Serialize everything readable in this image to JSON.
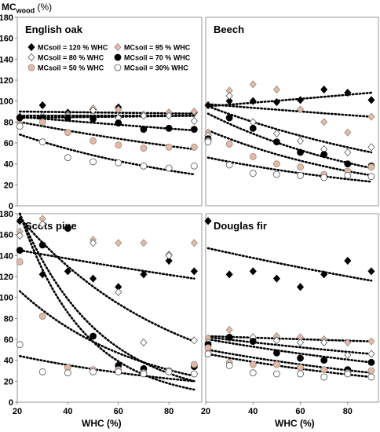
{
  "figure": {
    "ylabel_main": "MC",
    "ylabel_sub": "wood",
    "ylabel_unit": " (%)",
    "xlabel_left": "WHC (%)",
    "xlabel_right": "WHC (%)"
  },
  "legend": {
    "entries": [
      {
        "key": "120",
        "label": "MCsoil = 120 % WHC"
      },
      {
        "key": "95",
        "label": "MCsoil = 95 % WHC"
      },
      {
        "key": "80",
        "label": "MCsoil = 80 % WHC"
      },
      {
        "key": "70",
        "label": "MCsoil = 70 % WHC"
      },
      {
        "key": "50",
        "label": "MCsoil = 50 % WHC"
      },
      {
        "key": "30",
        "label": "MCsoil = 30% WHC"
      }
    ]
  },
  "series_styles": {
    "120": {
      "marker": "diamond",
      "fill": "#000000",
      "stroke": "#000000"
    },
    "95": {
      "marker": "diamond",
      "fill": "#e8b9a0",
      "stroke": "#8c8c8c"
    },
    "80": {
      "marker": "diamond",
      "fill": "#ffffff",
      "stroke": "#555555"
    },
    "70": {
      "marker": "circle",
      "fill": "#000000",
      "stroke": "#000000"
    },
    "50": {
      "marker": "circle",
      "fill": "#e8b9a0",
      "stroke": "#8c8c8c"
    },
    "30": {
      "marker": "circle",
      "fill": "#ffffff",
      "stroke": "#555555"
    }
  },
  "chart_data": [
    {
      "type": "scatter",
      "title": "English oak",
      "xlabel": "",
      "ylabel": "MCwood (%)",
      "xlim": [
        20,
        93
      ],
      "ylim": [
        0,
        180
      ],
      "xticks": [],
      "yticks": [
        0,
        20,
        40,
        60,
        80,
        100,
        120,
        140,
        160,
        180
      ],
      "grid": false,
      "legend": "top-left, inside",
      "x": [
        21,
        30,
        40,
        50,
        60,
        70,
        80,
        90
      ],
      "series": [
        {
          "key": "120",
          "values": [
            85,
            96,
            89,
            92,
            94,
            87,
            89,
            89
          ],
          "trend": [
            90,
            88
          ]
        },
        {
          "key": "95",
          "values": [
            79,
            85,
            87,
            93,
            92,
            87,
            89,
            90
          ],
          "trend": [
            86,
            86
          ]
        },
        {
          "key": "80",
          "values": [
            84,
            86,
            86,
            91,
            84,
            86,
            86,
            81
          ],
          "trend": [
            84,
            86
          ]
        },
        {
          "key": "70",
          "values": [
            84,
            84,
            84,
            83,
            79,
            73,
            74,
            73
          ],
          "trend": [
            85,
            72
          ]
        },
        {
          "key": "50",
          "values": [
            76,
            80,
            70,
            62,
            58,
            55,
            56,
            56
          ],
          "trend": [
            80,
            54
          ]
        },
        {
          "key": "30",
          "values": [
            76,
            61,
            46,
            42,
            41,
            38,
            36,
            38
          ],
          "trend": [
            68,
            30
          ]
        }
      ]
    },
    {
      "type": "scatter",
      "title": "Beech",
      "xlabel": "",
      "ylabel": "",
      "xlim": [
        20,
        93
      ],
      "ylim": [
        0,
        180
      ],
      "xticks": [],
      "yticks": [],
      "grid": false,
      "legend": "none",
      "x": [
        21,
        30,
        40,
        50,
        60,
        70,
        80,
        90
      ],
      "series": [
        {
          "key": "120",
          "values": [
            96,
            100,
            100,
            99,
            101,
            111,
            108,
            101
          ],
          "trend": [
            95,
            108
          ]
        },
        {
          "key": "95",
          "values": [
            70,
            110,
            116,
            111,
            92,
            80,
            70,
            85
          ],
          "trend": [
            97,
            85
          ]
        },
        {
          "key": "80",
          "values": [
            67,
            105,
            80,
            69,
            62,
            54,
            51,
            56
          ],
          "trend": [
            95,
            51
          ]
        },
        {
          "key": "70",
          "values": [
            64,
            84,
            74,
            61,
            51,
            49,
            40,
            38
          ],
          "trend": [
            88,
            36
          ]
        },
        {
          "key": "50",
          "values": [
            62,
            59,
            47,
            40,
            37,
            30,
            33,
            37
          ],
          "trend": [
            72,
            29
          ]
        },
        {
          "key": "30",
          "values": [
            61,
            39,
            31,
            30,
            29,
            27,
            29,
            28
          ],
          "trend": [
            46,
            23
          ]
        }
      ]
    },
    {
      "type": "scatter",
      "title": "Scots pine",
      "xlabel": "WHC (%)",
      "ylabel": "MCwood (%)",
      "xlim": [
        20,
        93
      ],
      "ylim": [
        0,
        180
      ],
      "xticks": [
        20,
        40,
        60,
        80
      ],
      "yticks": [
        0,
        20,
        40,
        60,
        80,
        100,
        120,
        140,
        160,
        180
      ],
      "grid": false,
      "legend": "none",
      "x": [
        21,
        30,
        40,
        50,
        60,
        70,
        80,
        90
      ],
      "series": [
        {
          "key": "120",
          "values": [
            173,
            122,
            125,
            118,
            110,
            122,
            135,
            125
          ],
          "trend": [
            145,
            118
          ]
        },
        {
          "key": "95",
          "values": [
            163,
            175,
            167,
            155,
            152,
            152,
            141,
            152
          ],
          "trend": [
            180,
            20
          ]
        },
        {
          "key": "80",
          "values": [
            159,
            170,
            166,
            152,
            105,
            57,
            140,
            59
          ],
          "trend": [
            176,
            58
          ]
        },
        {
          "key": "70",
          "values": [
            145,
            150,
            166,
            63,
            35,
            32,
            30,
            34
          ],
          "trend": [
            180,
            12
          ]
        },
        {
          "key": "50",
          "values": [
            134,
            82,
            33,
            31,
            31,
            28,
            30,
            36
          ],
          "trend": [
            106,
            25
          ]
        },
        {
          "key": "30",
          "values": [
            55,
            29,
            28,
            29,
            29,
            27,
            29,
            27
          ],
          "trend": [
            44,
            20
          ]
        }
      ]
    },
    {
      "type": "scatter",
      "title": "Douglas fir",
      "xlabel": "WHC (%)",
      "ylabel": "",
      "xlim": [
        20,
        93
      ],
      "ylim": [
        0,
        180
      ],
      "xticks": [
        20,
        40,
        60,
        80
      ],
      "yticks": [],
      "grid": false,
      "legend": "none",
      "x": [
        21,
        30,
        40,
        50,
        60,
        70,
        80,
        90
      ],
      "series": [
        {
          "key": "120",
          "values": [
            173,
            122,
            125,
            118,
            110,
            122,
            135,
            125
          ],
          "trend": [
            147,
            116
          ]
        },
        {
          "key": "95",
          "values": [
            61,
            69,
            60,
            63,
            62,
            60,
            57,
            58
          ],
          "trend": [
            63,
            58
          ]
        },
        {
          "key": "80",
          "values": [
            57,
            61,
            62,
            59,
            57,
            57,
            45,
            46
          ],
          "trend": [
            62,
            46
          ]
        },
        {
          "key": "70",
          "values": [
            55,
            62,
            58,
            47,
            42,
            40,
            31,
            38
          ],
          "trend": [
            60,
            38
          ]
        },
        {
          "key": "50",
          "values": [
            52,
            38,
            36,
            36,
            33,
            31,
            28,
            30
          ],
          "trend": [
            50,
            28
          ]
        },
        {
          "key": "30",
          "values": [
            46,
            35,
            28,
            27,
            27,
            24,
            27,
            24
          ],
          "trend": [
            46,
            24
          ]
        }
      ]
    }
  ]
}
